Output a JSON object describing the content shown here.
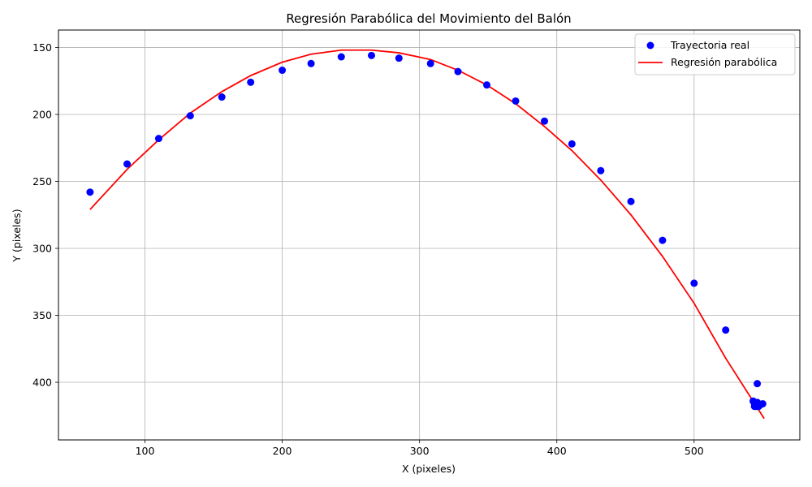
{
  "chart_data": {
    "type": "scatter",
    "title": "Regresión Parabólica del Movimiento del Balón",
    "xlabel": "X (pixeles)",
    "ylabel": "Y (pixeles)",
    "xlim": [
      37,
      577
    ],
    "ylim": [
      443,
      137
    ],
    "y_inverted": true,
    "grid": true,
    "legend_position": "top-right",
    "x_ticks": [
      100,
      200,
      300,
      400,
      500
    ],
    "y_ticks": [
      150,
      200,
      250,
      300,
      350,
      400
    ],
    "series": [
      {
        "name": "Trayectoria real",
        "kind": "scatter",
        "color": "#0000ff",
        "x": [
          60,
          87,
          110,
          133,
          156,
          177,
          200,
          221,
          243,
          265,
          285,
          308,
          328,
          349,
          370,
          391,
          411,
          432,
          454,
          477,
          500,
          523,
          546,
          543,
          544,
          545,
          546,
          547,
          548,
          544,
          545,
          546,
          547,
          550
        ],
        "y": [
          258,
          237,
          218,
          201,
          187,
          176,
          167,
          162,
          157,
          156,
          158,
          162,
          168,
          178,
          190,
          205,
          222,
          242,
          265,
          294,
          326,
          361,
          401,
          414,
          416,
          417,
          415,
          416,
          417,
          418,
          418,
          418,
          418,
          416
        ]
      },
      {
        "name": "Regresión parabólica",
        "kind": "line",
        "color": "#ff0000",
        "x": [
          60,
          87,
          110,
          133,
          156,
          177,
          200,
          221,
          243,
          265,
          285,
          308,
          328,
          349,
          370,
          391,
          411,
          432,
          454,
          477,
          500,
          523,
          551
        ],
        "y": [
          271,
          241,
          219,
          199,
          183,
          171,
          161,
          155,
          152,
          152,
          154,
          159,
          167,
          178,
          192,
          209,
          227,
          249,
          275,
          306,
          341,
          382,
          427
        ]
      }
    ]
  }
}
